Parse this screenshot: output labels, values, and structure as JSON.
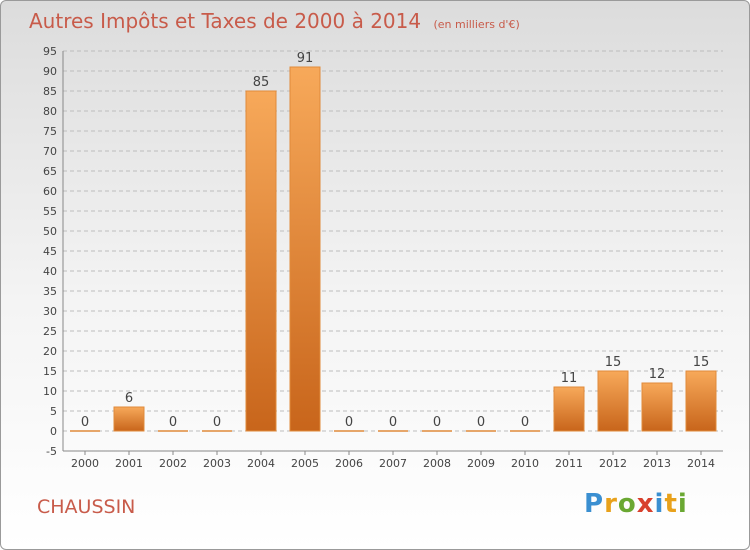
{
  "title": "Autres Impôts et Taxes de 2000 à 2014",
  "subtitle": "(en milliers d'€)",
  "place": "CHAUSSIN",
  "logo": "Proxiti",
  "chart_data": {
    "type": "bar",
    "categories": [
      "2000",
      "2001",
      "2002",
      "2003",
      "2004",
      "2005",
      "2006",
      "2007",
      "2008",
      "2009",
      "2010",
      "2011",
      "2012",
      "2013",
      "2014"
    ],
    "values": [
      0,
      6,
      0,
      0,
      85,
      91,
      0,
      0,
      0,
      0,
      0,
      11,
      15,
      12,
      15
    ],
    "ylim": [
      -5,
      95
    ],
    "yticks": [
      -5,
      0,
      5,
      10,
      15,
      20,
      25,
      30,
      35,
      40,
      45,
      50,
      55,
      60,
      65,
      70,
      75,
      80,
      85,
      90,
      95
    ],
    "grid": true,
    "colors": {
      "bar_light": "#f7a95a",
      "bar_dark": "#c8651b",
      "grid": "#bdbdbd",
      "text": "#444444",
      "title": "#c85b4a"
    }
  }
}
